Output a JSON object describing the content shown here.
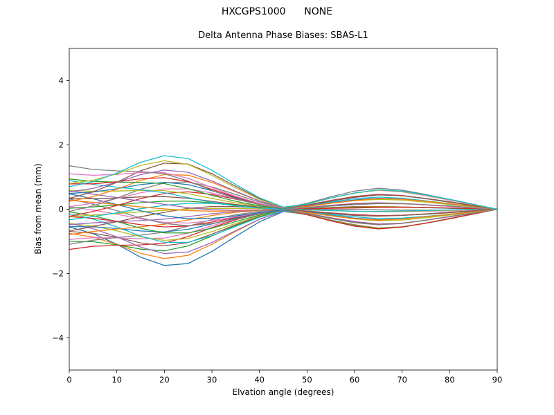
{
  "header": {
    "title": "HXCGPS1000      NONE",
    "subtitle": "Delta Antenna Phase Biases: SBAS-L1"
  },
  "chart_data": {
    "type": "line",
    "title": "HXCGPS1000      NONE",
    "subtitle": "Delta Antenna Phase Biases: SBAS-L1",
    "xlabel": "Elvation angle (degrees)",
    "ylabel": "Bias from mean (mm)",
    "xlim": [
      0,
      90
    ],
    "ylim": [
      -5,
      5
    ],
    "xticks": [
      0,
      10,
      20,
      30,
      40,
      50,
      60,
      70,
      80,
      90
    ],
    "xtick_labels": [
      "0",
      "10",
      "20",
      "30",
      "40",
      "50",
      "60",
      "70",
      "80",
      "90"
    ],
    "yticks": [
      -4,
      -2,
      0,
      2,
      4
    ],
    "ytick_labels": [
      "−4",
      "−2",
      "0",
      "2",
      "4"
    ],
    "grid": false,
    "legend": "none",
    "n_series": 40,
    "x": [
      0,
      5,
      10,
      15,
      20,
      25,
      30,
      35,
      40,
      45,
      50,
      55,
      60,
      65,
      70,
      75,
      80,
      85,
      90
    ],
    "envelope": {
      "top": [
        1.45,
        1.35,
        1.35,
        1.5,
        1.6,
        1.5,
        1.1,
        0.7,
        0.35,
        0.1,
        0.2,
        0.4,
        0.6,
        0.7,
        0.65,
        0.5,
        0.35,
        0.18,
        0.0
      ],
      "bottom": [
        -1.4,
        -1.35,
        -1.5,
        -1.8,
        -1.7,
        -1.5,
        -1.15,
        -0.75,
        -0.4,
        -0.1,
        -0.2,
        -0.4,
        -0.6,
        -0.7,
        -0.65,
        -0.5,
        -0.35,
        -0.18,
        0.0
      ]
    },
    "modes": {
      "E1": [
        1.0,
        1.05,
        1.2,
        1.4,
        1.5,
        1.35,
        1.0,
        0.62,
        0.28,
        0.05,
        0.18,
        0.38,
        0.55,
        0.65,
        0.6,
        0.47,
        0.32,
        0.16,
        0.0
      ],
      "E2": [
        1.0,
        0.65,
        0.25,
        -0.2,
        -0.55,
        -0.75,
        -0.7,
        -0.5,
        -0.25,
        -0.05,
        0.05,
        0.1,
        0.15,
        0.15,
        0.12,
        0.08,
        0.04,
        0.02,
        0.0
      ]
    },
    "series_coefficients": {
      "a": [
        -1.0,
        -0.95,
        -0.9,
        -0.85,
        -0.79,
        -0.74,
        -0.69,
        -0.64,
        -0.59,
        -0.54,
        -0.49,
        -0.44,
        -0.38,
        -0.33,
        -0.28,
        -0.23,
        -0.18,
        -0.13,
        -0.08,
        -0.03,
        0.03,
        0.08,
        0.13,
        0.18,
        0.23,
        0.28,
        0.33,
        0.38,
        0.44,
        0.49,
        0.54,
        0.59,
        0.64,
        0.69,
        0.74,
        0.79,
        0.85,
        0.9,
        0.95,
        1.0
      ],
      "b": [
        0.45,
        0.2,
        -0.1,
        -0.4,
        0.35,
        0.05,
        -0.25,
        -0.45,
        0.15,
        0.4,
        -0.05,
        -0.35,
        0.3,
        0.1,
        -0.2,
        -0.45,
        0.25,
        0.45,
        -0.15,
        -0.3,
        0.45,
        0.2,
        -0.1,
        -0.4,
        0.35,
        0.05,
        -0.25,
        -0.45,
        0.15,
        0.4,
        -0.05,
        -0.35,
        0.3,
        0.1,
        -0.2,
        -0.45,
        0.25,
        0.45,
        -0.15,
        -0.3
      ]
    },
    "colors": [
      "#1f77b4",
      "#ff7f0e",
      "#2ca02c",
      "#d62728",
      "#9467bd",
      "#8c564b",
      "#e377c2",
      "#7f7f7f",
      "#bcbd22",
      "#17becf"
    ]
  }
}
